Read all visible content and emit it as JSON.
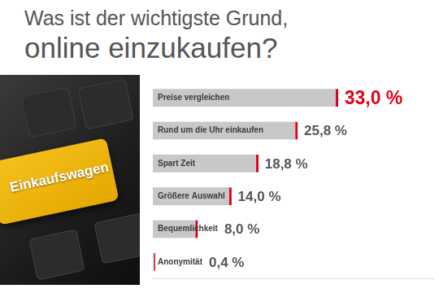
{
  "chart_data": {
    "type": "bar",
    "orientation": "horizontal",
    "title": [
      "Was ist der wichtigste Grund,",
      "online einzukaufen?"
    ],
    "annotations": [
      "Einkaufswagen"
    ],
    "categories": [
      "Preise vergleichen",
      "Rund um die Uhr einkaufen",
      "Spart Zeit",
      "Größere Auswahl",
      "Bequemlichkeit",
      "Anonymität"
    ],
    "values": [
      33.0,
      25.8,
      18.8,
      14.0,
      8.0,
      0.4
    ],
    "value_labels": [
      "33,0 %",
      "25,8 %",
      "18,8 %",
      "14,0 %",
      "8,0 %",
      "0,4 %"
    ],
    "color": "#c8c8c8",
    "xlim": [
      0,
      50
    ],
    "grid": false,
    "tick_labels": false,
    "data_labels": true
  }
}
